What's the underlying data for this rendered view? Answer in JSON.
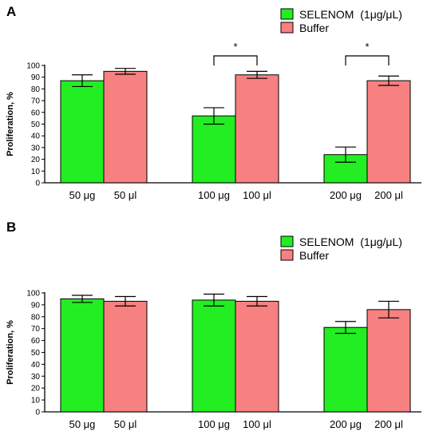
{
  "colors": {
    "selenom": "#22ee22",
    "buffer": "#f78080",
    "axis": "#000000"
  },
  "chart_data": [
    {
      "panel_label": "A",
      "type": "bar",
      "ylabel": "Proliferation, %",
      "ylim": [
        0,
        100
      ],
      "yticks": [
        0,
        10,
        20,
        30,
        40,
        50,
        60,
        70,
        80,
        90,
        100
      ],
      "legend": [
        "SELENOM  (1μg/μL)",
        "Buffer"
      ],
      "legend_position": "top-right",
      "groups": [
        {
          "bars": [
            {
              "label": "50 μg",
              "series": "selenom",
              "value": 87,
              "err": 5
            },
            {
              "label": "50 μl",
              "series": "buffer",
              "value": 95,
              "err": 2.5
            }
          ]
        },
        {
          "bars": [
            {
              "label": "100 μg",
              "series": "selenom",
              "value": 57,
              "err": 7
            },
            {
              "label": "100 μl",
              "series": "buffer",
              "value": 92,
              "err": 3
            }
          ],
          "significance": "*"
        },
        {
          "bars": [
            {
              "label": "200 μg",
              "series": "selenom",
              "value": 24,
              "err": 6.5
            },
            {
              "label": "200 μl",
              "series": "buffer",
              "value": 87,
              "err": 4
            }
          ],
          "significance": "*"
        }
      ]
    },
    {
      "panel_label": "B",
      "type": "bar",
      "ylabel": "Proliferation, %",
      "ylim": [
        0,
        100
      ],
      "yticks": [
        0,
        10,
        20,
        30,
        40,
        50,
        60,
        70,
        80,
        90,
        100
      ],
      "legend": [
        "SELENOM  (1μg/μL)",
        "Buffer"
      ],
      "legend_position": "top-right",
      "groups": [
        {
          "bars": [
            {
              "label": "50 μg",
              "series": "selenom",
              "value": 95,
              "err": 3
            },
            {
              "label": "50 μl",
              "series": "buffer",
              "value": 93,
              "err": 4
            }
          ]
        },
        {
          "bars": [
            {
              "label": "100 μg",
              "series": "selenom",
              "value": 94,
              "err": 5
            },
            {
              "label": "100 μl",
              "series": "buffer",
              "value": 93,
              "err": 4
            }
          ]
        },
        {
          "bars": [
            {
              "label": "200 μg",
              "series": "selenom",
              "value": 71,
              "err": 5
            },
            {
              "label": "200 μl",
              "series": "buffer",
              "value": 86,
              "err": 7
            }
          ]
        }
      ]
    }
  ]
}
